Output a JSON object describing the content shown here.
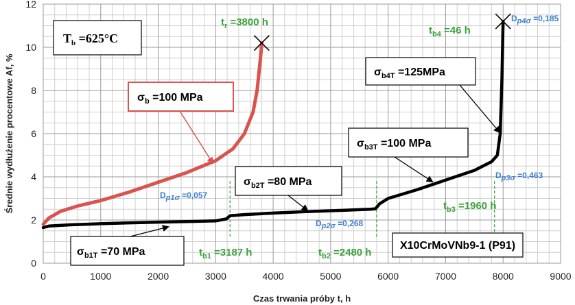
{
  "chart_data": {
    "type": "line",
    "xlabel": "Czas trwania próby t, h",
    "ylabel": "Średnie wydłużenie procentowe Af, %",
    "xlim": [
      0,
      9000
    ],
    "ylim": [
      0,
      12
    ],
    "xticks": [
      "0",
      "1000",
      "2000",
      "3000",
      "4000",
      "5000",
      "6000",
      "7000",
      "8000",
      "9000"
    ],
    "yticks": [
      "0",
      "2",
      "4",
      "6",
      "8",
      "10",
      "12"
    ],
    "grid": true,
    "colors": {
      "red_series": "#d9534f",
      "black_series": "#000000",
      "green_text": "#3aa23a",
      "blue_text": "#3b7fd0"
    },
    "series": [
      {
        "color": "#d9534f",
        "x": [
          0,
          100,
          300,
          600,
          1000,
          1500,
          2000,
          2500,
          3000,
          3300,
          3500,
          3650,
          3720,
          3760,
          3790,
          3800
        ],
        "y": [
          1.8,
          2.1,
          2.4,
          2.65,
          2.9,
          3.3,
          3.75,
          4.2,
          4.75,
          5.3,
          6.0,
          7.0,
          8.0,
          9.0,
          9.8,
          10.2
        ]
      },
      {
        "color": "#000000",
        "x": [
          0,
          100,
          500,
          1000,
          1500,
          2000,
          2500,
          3000,
          3187,
          3250,
          3500,
          4000,
          4500,
          5000,
          5500,
          5700,
          5780,
          5850,
          6000,
          6500,
          7000,
          7500,
          7800,
          7900,
          7950,
          7980,
          8000
        ],
        "y": [
          1.65,
          1.72,
          1.78,
          1.83,
          1.87,
          1.9,
          1.93,
          1.96,
          2.05,
          2.2,
          2.25,
          2.32,
          2.38,
          2.43,
          2.48,
          2.5,
          2.52,
          2.75,
          3.0,
          3.4,
          3.85,
          4.3,
          4.7,
          5.0,
          6.0,
          8.5,
          11.2
        ]
      }
    ],
    "markers": [
      {
        "x": 3800,
        "y": 10.2
      },
      {
        "x": 8000,
        "y": 11.2
      }
    ],
    "vlines": [
      3250,
      5800,
      7850
    ],
    "annotations": {
      "temp": {
        "main": "T",
        "sub": "b",
        "rest": " =625°C"
      },
      "tr": {
        "main": "t",
        "sub": "r",
        "rest": " =3800 h"
      },
      "tb4": {
        "main": "t",
        "sub": "b4",
        "rest": " =46 h"
      },
      "tb1": {
        "main": "t",
        "sub": "b1",
        "rest": " =3187 h"
      },
      "tb2": {
        "main": "t",
        "sub": "b2",
        "rest": " =2480 h"
      },
      "tb3": {
        "main": "t",
        "sub": "b3",
        "rest": " =1960 h"
      },
      "dp1": {
        "main": "D",
        "sub": "p1σ",
        "rest": " =0,057"
      },
      "dp2": {
        "main": "D",
        "sub": "p2σ",
        "rest": " =0,268"
      },
      "dp3": {
        "main": "D",
        "sub": "p3σ",
        "rest": " =0,463"
      },
      "dp4": {
        "main": "D",
        "sub": "p4σ",
        "rest": " =0,185"
      },
      "sb": {
        "main": "σ",
        "sub": "b",
        "rest": " =100 MPa"
      },
      "sb1": {
        "main": "σ",
        "sub": "b1T",
        "rest": " =70 MPa"
      },
      "sb2": {
        "main": "σ",
        "sub": "b2T",
        "rest": " =80 MPa"
      },
      "sb3": {
        "main": "σ",
        "sub": "b3T",
        "rest": " =100 MPa"
      },
      "sb4": {
        "main": "σ",
        "sub": "b4T",
        "rest": " =125MPa"
      },
      "material": "X10CrMoVNb9-1 (P91)"
    }
  }
}
